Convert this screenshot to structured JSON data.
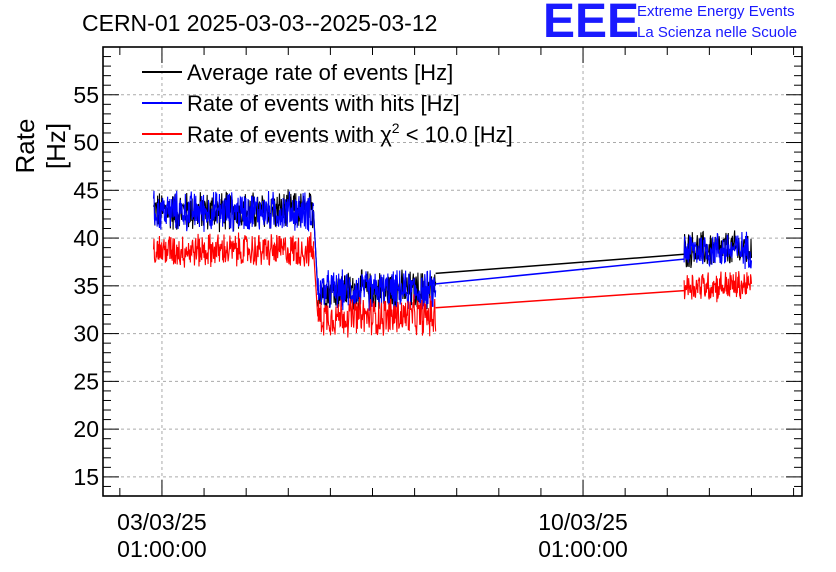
{
  "header": {
    "title": "CERN-01 2025-03-03--2025-03-12",
    "logo_text": "EEE",
    "logo_line1": "Extreme Energy Events",
    "logo_line2": "La Scienza nelle Scuole"
  },
  "colors": {
    "black": "#000000",
    "blue": "#0000ff",
    "red": "#ff0000",
    "logo": "#1a1aff",
    "grid": "#bbbbbb"
  },
  "chart_data": {
    "type": "line",
    "title": "CERN-01 2025-03-03--2025-03-12",
    "ylabel": "Rate [Hz]",
    "xlabel": "",
    "x_unit": "days since 03/03/25 01:00:00",
    "xlim": [
      -1.4,
      15.2
    ],
    "ylim": [
      13,
      60
    ],
    "yticks": [
      15,
      20,
      25,
      30,
      35,
      40,
      45,
      50,
      55
    ],
    "xticks": [
      {
        "value": 0,
        "label_line1": "03/03/25",
        "label_line2": "01:00:00"
      },
      {
        "value": 10,
        "label_line1": "10/03/25",
        "label_line2": "01:00:00"
      }
    ],
    "grid": true,
    "legend_position": "top-left",
    "legend": [
      {
        "series": "black",
        "label_main": "Average rate of events [Hz]"
      },
      {
        "series": "blue",
        "label_main": "Rate of events with hits [Hz]"
      },
      {
        "series": "red",
        "label_pre": "Rate of events with ",
        "label_chi": "χ",
        "label_sup": "2",
        "label_post": " < 10.0 [Hz]"
      }
    ],
    "series": [
      {
        "name": "Average rate of events [Hz]",
        "color": "#000000",
        "segments": [
          {
            "x_start": -0.2,
            "x_end": 3.6,
            "mean": 42.8,
            "spread": 1.5
          },
          {
            "x_start": 3.7,
            "x_end": 6.5,
            "mean": 34.5,
            "spread": 1.5
          },
          {
            "x_start": 12.4,
            "x_end": 14.0,
            "mean": 38.8,
            "spread": 1.4
          }
        ],
        "connector": [
          [
            6.5,
            36.3
          ],
          [
            12.4,
            38.3
          ]
        ]
      },
      {
        "name": "Rate of events with hits [Hz]",
        "color": "#0000ff",
        "segments": [
          {
            "x_start": -0.2,
            "x_end": 3.6,
            "mean": 42.8,
            "spread": 1.5
          },
          {
            "x_start": 3.7,
            "x_end": 6.5,
            "mean": 34.5,
            "spread": 1.5
          },
          {
            "x_start": 12.4,
            "x_end": 14.0,
            "mean": 38.8,
            "spread": 1.4
          }
        ],
        "connector": [
          [
            6.5,
            35.2
          ],
          [
            12.4,
            37.8
          ]
        ]
      },
      {
        "name": "Rate of events with χ2 < 10.0 [Hz]",
        "color": "#ff0000",
        "segments": [
          {
            "x_start": -0.2,
            "x_end": 3.6,
            "mean": 38.7,
            "spread": 1.3
          },
          {
            "x_start": 3.7,
            "x_end": 6.5,
            "mean": 31.8,
            "spread": 1.5
          },
          {
            "x_start": 12.4,
            "x_end": 14.0,
            "mean": 35.0,
            "spread": 1.2
          }
        ],
        "connector": [
          [
            6.5,
            32.7
          ],
          [
            12.4,
            34.5
          ]
        ]
      }
    ]
  }
}
